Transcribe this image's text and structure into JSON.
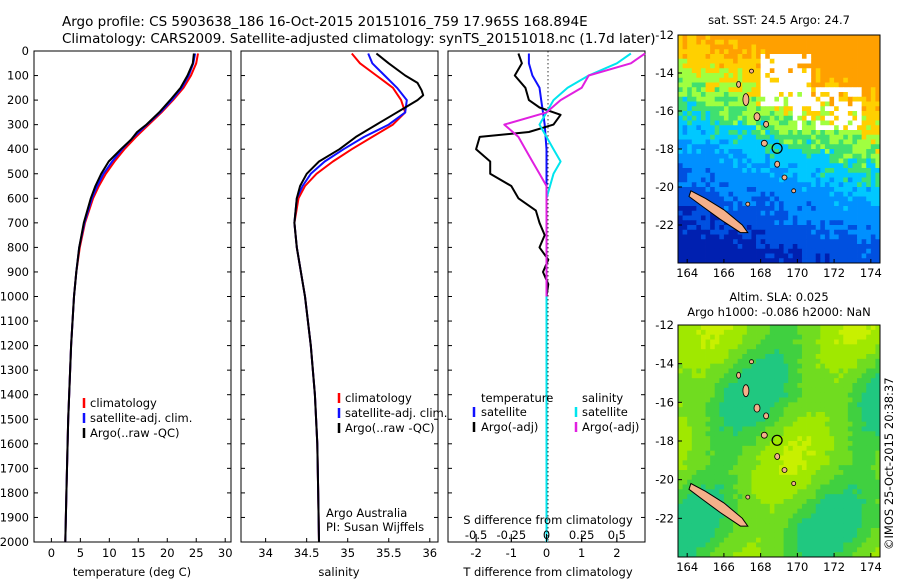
{
  "header": {
    "line1": "Argo profile: CS 5903638_186 16-Oct-2015 20151016_759 17.965S 168.894E",
    "line2": "Climatology: CARS2009. Satellite-adjusted climatology: synTS_20151018.nc (1.7d later)"
  },
  "colors": {
    "climatology": "#ff0000",
    "satellite": "#1010ff",
    "argo": "#000000",
    "sal_satellite": "#00e5ee",
    "sal_argo": "#e020e0"
  },
  "chart_data": [
    {
      "type": "line",
      "name": "temperature",
      "xlabel": "temperature (deg C)",
      "xlim": [
        -3,
        31
      ],
      "ylim": [
        2000,
        0
      ],
      "xticks": [
        0,
        5,
        10,
        15,
        20,
        25,
        30
      ],
      "yticks": [
        0,
        100,
        200,
        300,
        400,
        500,
        600,
        700,
        800,
        900,
        1000,
        1100,
        1200,
        1300,
        1400,
        1500,
        1600,
        1700,
        1800,
        1900,
        2000
      ],
      "legend": [
        "climatology",
        "satellite-adj. clim.",
        "Argo(..raw -QC)"
      ],
      "series": [
        {
          "name": "climatology",
          "color": "#ff0000",
          "depth": [
            10,
            50,
            100,
            150,
            200,
            250,
            300,
            350,
            400,
            450,
            500,
            550,
            600,
            700,
            800,
            900,
            1000,
            1200,
            1500,
            1800,
            2000
          ],
          "values": [
            25.3,
            25.0,
            24.1,
            22.8,
            21.0,
            19.0,
            16.8,
            14.6,
            12.6,
            10.9,
            9.4,
            8.2,
            7.2,
            5.8,
            4.9,
            4.3,
            3.9,
            3.4,
            2.9,
            2.6,
            2.4
          ]
        },
        {
          "name": "satellite-adj. clim.",
          "color": "#1010ff",
          "depth": [
            10,
            50,
            100,
            150,
            200,
            250,
            300,
            350,
            400,
            450,
            500,
            550,
            600,
            700,
            800,
            900,
            1000,
            1200,
            1500,
            1800,
            2000
          ],
          "values": [
            24.8,
            24.5,
            23.7,
            22.5,
            20.8,
            18.8,
            16.5,
            14.2,
            12.2,
            10.5,
            9.0,
            7.9,
            7.0,
            5.7,
            4.8,
            4.3,
            3.9,
            3.4,
            2.9,
            2.6,
            2.4
          ]
        },
        {
          "name": "Argo",
          "color": "#000000",
          "depth": [
            10,
            50,
            100,
            150,
            200,
            250,
            300,
            330,
            360,
            400,
            450,
            500,
            550,
            600,
            700,
            800,
            900,
            1000,
            1200,
            1500,
            1800,
            2000
          ],
          "values": [
            24.6,
            24.4,
            23.5,
            22.3,
            20.5,
            18.6,
            16.4,
            14.8,
            13.8,
            12.0,
            9.9,
            8.6,
            7.6,
            6.8,
            5.6,
            4.8,
            4.3,
            3.9,
            3.4,
            2.9,
            2.6,
            2.4
          ]
        }
      ]
    },
    {
      "type": "line",
      "name": "salinity",
      "xlabel": "salinity",
      "xlim": [
        33.7,
        36.1
      ],
      "ylim": [
        2000,
        0
      ],
      "xticks": [
        34,
        34.5,
        35,
        35.5,
        36
      ],
      "legend": [
        "climatology",
        "satellite-adj. clim.",
        "Argo(..raw -QC)"
      ],
      "series": [
        {
          "name": "climatology",
          "color": "#ff0000",
          "depth": [
            10,
            50,
            100,
            150,
            200,
            250,
            300,
            350,
            400,
            450,
            500,
            550,
            600,
            700,
            800,
            900,
            1000,
            1200,
            1400,
            1600,
            1800,
            2000
          ],
          "values": [
            35.05,
            35.15,
            35.35,
            35.55,
            35.65,
            35.7,
            35.55,
            35.3,
            35.05,
            34.82,
            34.62,
            34.48,
            34.4,
            34.35,
            34.38,
            34.43,
            34.48,
            34.55,
            34.6,
            34.63,
            34.64,
            34.65
          ]
        },
        {
          "name": "satellite-adj. clim.",
          "color": "#1010ff",
          "depth": [
            10,
            50,
            100,
            150,
            200,
            250,
            300,
            350,
            400,
            450,
            500,
            550,
            600,
            700,
            800,
            900,
            1000,
            1200,
            1400,
            1600,
            1800,
            2000
          ],
          "values": [
            35.25,
            35.3,
            35.45,
            35.6,
            35.72,
            35.7,
            35.5,
            35.2,
            34.95,
            34.72,
            34.55,
            34.45,
            34.38,
            34.35,
            34.38,
            34.43,
            34.48,
            34.55,
            34.6,
            34.63,
            34.64,
            34.65
          ]
        },
        {
          "name": "Argo",
          "color": "#000000",
          "depth": [
            10,
            50,
            100,
            130,
            160,
            180,
            200,
            230,
            260,
            300,
            350,
            400,
            450,
            500,
            550,
            600,
            700,
            800,
            900,
            1000,
            1200,
            1400,
            1600,
            1800,
            2000
          ],
          "values": [
            35.35,
            35.5,
            35.7,
            35.85,
            35.9,
            35.92,
            35.85,
            35.7,
            35.55,
            35.35,
            35.1,
            34.9,
            34.65,
            34.5,
            34.42,
            34.38,
            34.35,
            34.38,
            34.43,
            34.48,
            34.55,
            34.6,
            34.63,
            34.64,
            34.65
          ]
        }
      ]
    },
    {
      "type": "line",
      "name": "difference",
      "xlabel": "T difference from climatology",
      "xlabel_top": "S difference from climatology",
      "xlim": [
        -2.8,
        2.8
      ],
      "ylim": [
        2000,
        0
      ],
      "xticks": [
        -2,
        -1,
        0,
        1,
        2
      ],
      "s_ticks": [
        -0.5,
        -0.25,
        0,
        0.25,
        0.5
      ],
      "legend_headers": [
        "temperature",
        "salinity"
      ],
      "legend": [
        "satellite",
        "Argo(-adj)",
        "satellite",
        "Argo(-adj)"
      ],
      "series": [
        {
          "name": "T satellite",
          "color": "#1010ff",
          "depth": [
            10,
            50,
            100,
            150,
            200,
            250,
            300,
            400,
            500,
            600,
            800,
            1000,
            1500,
            2000
          ],
          "values": [
            -0.5,
            -0.5,
            -0.4,
            -0.2,
            -0.15,
            -0.1,
            -0.05,
            0,
            0,
            0,
            0,
            0,
            0,
            0
          ]
        },
        {
          "name": "T Argo",
          "color": "#000000",
          "depth": [
            10,
            50,
            100,
            150,
            200,
            230,
            260,
            300,
            330,
            350,
            400,
            450,
            500,
            550,
            600,
            650,
            700,
            750,
            800,
            850,
            900,
            950,
            1000
          ],
          "values": [
            -0.8,
            -0.7,
            -0.9,
            -0.6,
            -0.5,
            -0.2,
            0.4,
            0.2,
            -0.5,
            -1.9,
            -2.0,
            -1.6,
            -1.6,
            -1.0,
            -0.8,
            -0.3,
            -0.2,
            -0.05,
            -0.2,
            0.05,
            -0.1,
            0.05,
            0.0
          ]
        },
        {
          "name": "S satellite",
          "color": "#00e5ee",
          "depth": [
            10,
            50,
            100,
            150,
            200,
            250,
            300,
            350,
            400,
            450,
            500,
            600,
            700,
            800,
            1000,
            1500,
            2000
          ],
          "values": [
            0.6,
            0.5,
            0.3,
            0.15,
            0.05,
            0.0,
            -0.05,
            0.0,
            0.05,
            0.1,
            0.05,
            0.0,
            0.0,
            0.0,
            0.0,
            0.0,
            0.0
          ]
        },
        {
          "name": "S Argo",
          "color": "#e020e0",
          "depth": [
            10,
            50,
            100,
            150,
            200,
            250,
            300,
            350,
            400,
            450,
            500,
            550,
            600,
            700,
            800,
            1000
          ],
          "values": [
            0.7,
            0.6,
            0.3,
            0.25,
            0.1,
            0.0,
            -0.3,
            -0.2,
            -0.15,
            -0.1,
            -0.05,
            0.0,
            0.0,
            0.0,
            0.0,
            0.0
          ]
        }
      ]
    },
    {
      "type": "heatmap",
      "name": "sst-map",
      "title": "sat. SST: 24.5  Argo: 24.7",
      "xlim": [
        163.5,
        174.5
      ],
      "ylim": [
        -24,
        -12
      ],
      "xticks": [
        164,
        166,
        168,
        170,
        172,
        174
      ],
      "yticks": [
        -12,
        -14,
        -16,
        -18,
        -20,
        -22
      ],
      "marker": {
        "lon": 168.894,
        "lat": -17.965
      }
    },
    {
      "type": "heatmap",
      "name": "sla-map",
      "title": "Altim. SLA: 0.025",
      "subtitle": "Argo h1000: -0.086  h2000: NaN",
      "xlim": [
        163.5,
        174.5
      ],
      "ylim": [
        -24,
        -12
      ],
      "xticks": [
        164,
        166,
        168,
        170,
        172,
        174
      ],
      "yticks": [
        -12,
        -14,
        -16,
        -18,
        -20,
        -22
      ],
      "marker": {
        "lon": 168.894,
        "lat": -17.965
      }
    }
  ],
  "notes": {
    "credit1": "Argo Australia",
    "credit2": "PI: Susan Wijffels",
    "side_stamp": "©IMOS 25-Oct-2015 20:38:37"
  }
}
